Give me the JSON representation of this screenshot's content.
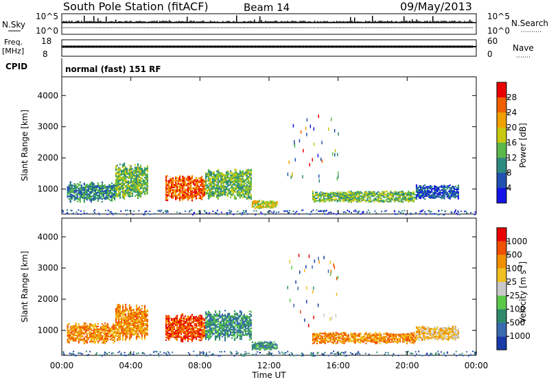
{
  "header": {
    "station": "South Pole Station (fitACF)",
    "beam": "Beam 14",
    "date": "09/May/2013"
  },
  "left_labels": {
    "nsky": "N.Sky",
    "nsky_top": "10^5",
    "nsky_bottom": "10^0",
    "freq": "Freq.",
    "freq_unit": "[MHz]",
    "freq_top": "18",
    "freq_bottom": "8",
    "cpid": "CPID",
    "cpid_value": "normal (fast) 151 RF"
  },
  "right_labels": {
    "nsearch": "N.Search",
    "nsearch_top": "10^5",
    "nsearch_bottom": "10^0",
    "nave": "Nave",
    "nave_top": "60",
    "nave_bottom": "0"
  },
  "colorbars": {
    "power": {
      "label": "Power [dB]",
      "ticks": [
        "4",
        "8",
        "12",
        "16",
        "20",
        "24",
        "28"
      ],
      "colors": [
        "#1414e6",
        "#2050b0",
        "#2e8a7e",
        "#5cb84a",
        "#c8c810",
        "#f0a000",
        "#f06000",
        "#e80000"
      ]
    },
    "velocity": {
      "label": "Velocity [m s",
      "label_exp": "-1",
      "label_end": "]",
      "ticks": [
        "1000",
        "500",
        "100",
        "25",
        "-25",
        "-100",
        "-500",
        "-1000"
      ],
      "colors": [
        "#1a3aa8",
        "#3a6ab0",
        "#2e8a6a",
        "#5cc84a",
        "#c8c8c8",
        "#f0c020",
        "#f09000",
        "#f05000",
        "#e80000"
      ]
    }
  },
  "x_axis": {
    "label": "Time UT",
    "ticks": [
      "00:00",
      "04:00",
      "08:00",
      "12:00",
      "16:00",
      "20:00",
      "00:00"
    ]
  },
  "chart_data": [
    {
      "type": "heatmap",
      "name": "power-panel",
      "xlabel": "Time UT",
      "ylabel": "Slant Range [km]",
      "xlim": [
        0,
        24
      ],
      "ylim": [
        200,
        4600
      ],
      "yticks": [
        1000,
        2000,
        3000,
        4000
      ],
      "xticks": [
        "00:00",
        "04:00",
        "08:00",
        "12:00",
        "16:00",
        "20:00",
        "00:00"
      ],
      "colorbar": "Power [dB]",
      "regions": [
        {
          "t0": 0.3,
          "t1": 3.1,
          "r0": 600,
          "r1": 1300,
          "level": 2
        },
        {
          "t0": 3.1,
          "t1": 5.0,
          "r0": 700,
          "r1": 1900,
          "level": 3
        },
        {
          "t0": 6.0,
          "t1": 8.3,
          "r0": 650,
          "r1": 1500,
          "level": 6
        },
        {
          "t0": 8.3,
          "t1": 11.0,
          "r0": 700,
          "r1": 1700,
          "level": 3
        },
        {
          "t0": 11.0,
          "t1": 12.5,
          "r0": 400,
          "r1": 700,
          "level": 4
        },
        {
          "t0": 14.5,
          "t1": 20.5,
          "r0": 600,
          "r1": 1000,
          "level": 3
        },
        {
          "t0": 20.5,
          "t1": 23.0,
          "r0": 700,
          "r1": 1200,
          "level": 1
        }
      ]
    },
    {
      "type": "heatmap",
      "name": "velocity-panel",
      "xlabel": "Time UT",
      "ylabel": "Slant Range [km]",
      "xlim": [
        0,
        24
      ],
      "ylim": [
        200,
        4600
      ],
      "yticks": [
        1000,
        2000,
        3000,
        4000
      ],
      "xticks": [
        "00:00",
        "04:00",
        "08:00",
        "12:00",
        "16:00",
        "20:00",
        "00:00"
      ],
      "colorbar": "Velocity [m s-1]",
      "regions": [
        {
          "t0": 0.3,
          "t1": 3.1,
          "r0": 600,
          "r1": 1300,
          "level": 6
        },
        {
          "t0": 3.1,
          "t1": 5.0,
          "r0": 700,
          "r1": 1900,
          "level": 6
        },
        {
          "t0": 6.0,
          "t1": 8.3,
          "r0": 650,
          "r1": 1600,
          "level": 7
        },
        {
          "t0": 8.3,
          "t1": 11.0,
          "r0": 700,
          "r1": 1700,
          "level": 2
        },
        {
          "t0": 11.0,
          "t1": 12.5,
          "r0": 400,
          "r1": 700,
          "level": 2
        },
        {
          "t0": 14.5,
          "t1": 20.5,
          "r0": 600,
          "r1": 1000,
          "level": 6
        },
        {
          "t0": 20.5,
          "t1": 23.0,
          "r0": 700,
          "r1": 1200,
          "level": 5
        }
      ]
    }
  ]
}
